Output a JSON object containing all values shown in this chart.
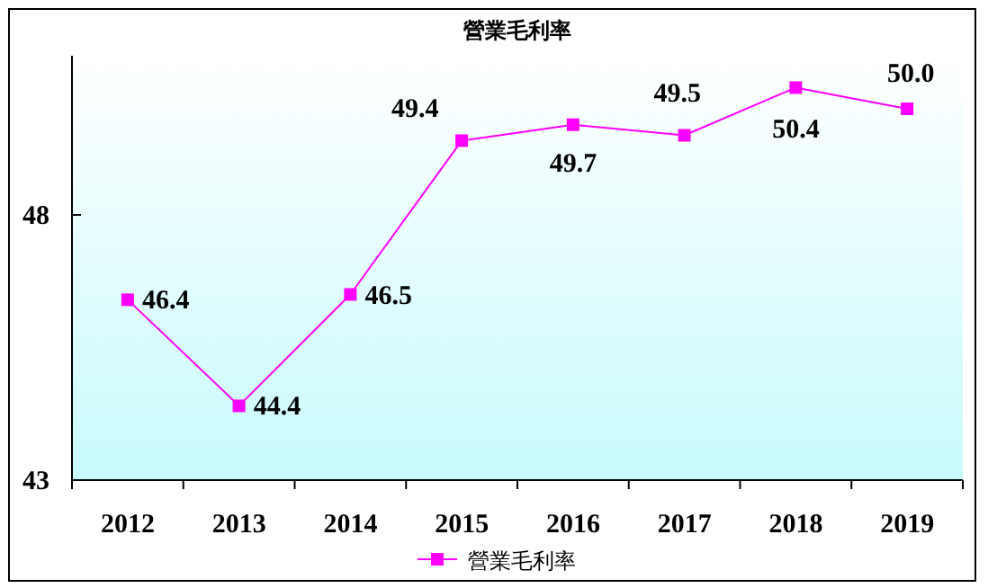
{
  "chart_data": {
    "type": "line",
    "title": "營業毛利率",
    "categories": [
      "2012",
      "2013",
      "2014",
      "2015",
      "2016",
      "2017",
      "2018",
      "2019"
    ],
    "series": [
      {
        "name": "營業毛利率",
        "color": "#ff00ff",
        "values": [
          46.4,
          44.4,
          46.5,
          49.4,
          49.7,
          49.5,
          50.4,
          50.0
        ],
        "value_labels": [
          "46.4",
          "44.4",
          "46.5",
          "49.4",
          "49.7",
          "49.5",
          "50.4",
          "50.0"
        ]
      }
    ],
    "ylim": [
      43,
      51
    ],
    "yticks": [
      43,
      48
    ],
    "marker": "square",
    "legend": "bottom",
    "grid": false
  }
}
